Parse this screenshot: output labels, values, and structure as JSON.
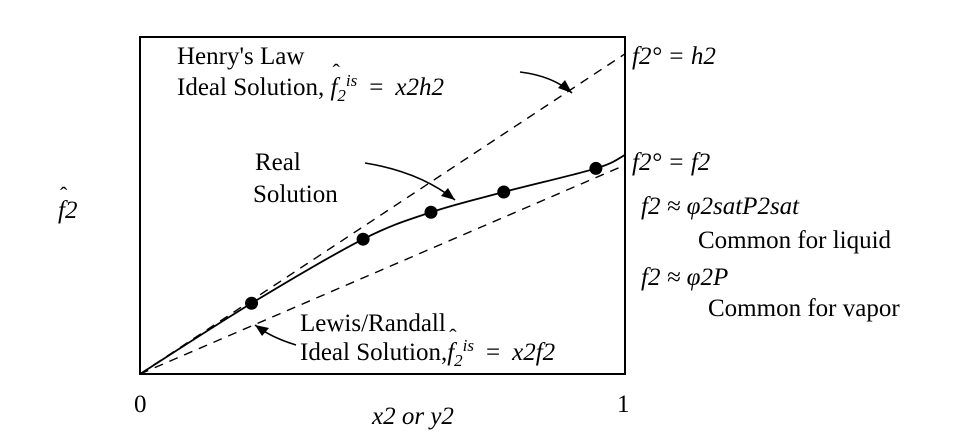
{
  "axes": {
    "y_label": "f2",
    "x_label": "x2 or y2",
    "x_min_label": "0",
    "x_max_label": "1"
  },
  "henry": {
    "title": "Henry's Law",
    "line2_prefix": "Ideal Solution,",
    "eq_lhs": "f",
    "eq_lhs_sub": "2",
    "eq_lhs_sup": "is",
    "eq_rhs": "x2h2",
    "end_label": "f2° = h2"
  },
  "real": {
    "line1": "Real",
    "line2": "Solution"
  },
  "lewis": {
    "title": "Lewis/Randall",
    "line2_prefix": "Ideal Solution,",
    "eq_rhs": "x2f2"
  },
  "right_labels": {
    "fugacity_std": "f2° = f2",
    "liquid_approx": "f2 ≈ φ2satP2sat",
    "liquid_note": "Common for liquid",
    "vapor_approx": "f2 ≈ φ2P",
    "vapor_note": "Common for vapor"
  },
  "chart_data": {
    "type": "line",
    "xlim": [
      0,
      1
    ],
    "series": [
      {
        "name": "Henry's Law Ideal Solution",
        "style": "dashed",
        "x": [
          0,
          1
        ],
        "y": [
          0,
          0.95
        ]
      },
      {
        "name": "Lewis/Randall Ideal Solution",
        "style": "dashed",
        "x": [
          0,
          1
        ],
        "y": [
          0,
          0.62
        ]
      },
      {
        "name": "Real Solution",
        "style": "solid",
        "x": [
          0.23,
          0.46,
          0.6,
          0.75,
          0.94
        ],
        "y": [
          0.21,
          0.4,
          0.48,
          0.54,
          0.61
        ]
      }
    ]
  }
}
